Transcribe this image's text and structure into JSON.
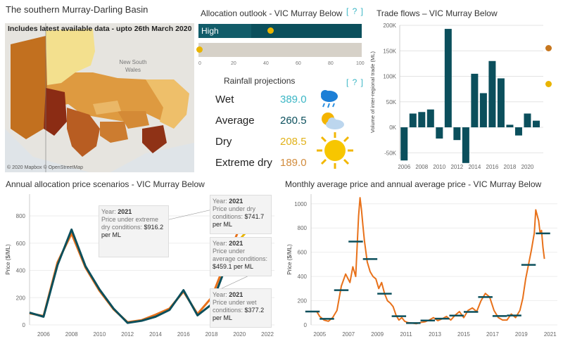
{
  "colors": {
    "teal": "#0b4f5c",
    "orange": "#e8711a",
    "gold": "#e9b400",
    "cyan": "#1fb8c4",
    "darkorange": "#c7771f",
    "gray": "#d6d1c8",
    "wet": "#3bb6c5",
    "average": "#0b4f5c",
    "dry": "#e1b21a",
    "extreme": "#d18b3c"
  },
  "map": {
    "title": "The southern Murray-Darling Basin",
    "subtitle": "Includes latest available data - upto 26th March 2020",
    "nsw_label": "New South Wales",
    "attribution": "© 2020 Mapbox © OpenStreetMap"
  },
  "allocation": {
    "title": "Allocation outlook - VIC Murray Below",
    "help": "[ ? ]",
    "high_label": "High",
    "bar1_icon": "sun-dot-icon",
    "bar2_icon": "sun-dot-icon",
    "axis_ticks": [
      "0",
      "20",
      "40",
      "60",
      "80",
      "100"
    ]
  },
  "rainfall": {
    "title": "Rainfall projections",
    "help": "[ ? ]",
    "rows": [
      {
        "label": "Wet",
        "value": "389.0",
        "icon": "rain-cloud-icon"
      },
      {
        "label": "Average",
        "value": "260.5",
        "icon": "partly-cloudy-icon"
      },
      {
        "label": "Dry",
        "value": "208.5",
        "icon": "sun-icon"
      },
      {
        "label": "Extreme dry",
        "value": "189.0",
        "icon": "big-sun-icon"
      }
    ]
  },
  "trade": {
    "title": "Trade flows – VIC Murray Below"
  },
  "scenarios": {
    "title": "Annual allocation price scenarios - VIC Murray Below",
    "tooltips": [
      {
        "year_label": "Year:",
        "year": "2021",
        "text": "Price under extreme dry conditions:",
        "value": "$916.2 per ML"
      },
      {
        "year_label": "Year:",
        "year": "2021",
        "text": "Price under dry conditions:",
        "value": "$741.7 per ML"
      },
      {
        "year_label": "Year:",
        "year": "2021",
        "text": "Price under average conditions:",
        "value": "$459.1 per ML"
      },
      {
        "year_label": "Year:",
        "year": "2021",
        "text": "Price under wet conditions:",
        "value": "$377.2 per ML"
      }
    ]
  },
  "monthly": {
    "title": "Monthly average price and annual average price - VIC Murray Below"
  },
  "chart_data": [
    {
      "type": "bar",
      "id": "trade",
      "title": "Trade flows – VIC Murray Below",
      "ylabel": "Volume of inter-regional trade (ML)",
      "ylim": [
        -62000,
        200000
      ],
      "yticks": [
        -50000,
        0,
        50000,
        100000,
        150000,
        200000
      ],
      "ytick_labels": [
        "-50K",
        "0K",
        "50K",
        "100K",
        "150K",
        "200K"
      ],
      "xticks": [
        2006,
        2008,
        2010,
        2012,
        2014,
        2016,
        2018,
        2020
      ],
      "x": [
        2006,
        2007,
        2008,
        2009,
        2010,
        2011,
        2012,
        2013,
        2014,
        2015,
        2016,
        2017,
        2018,
        2019,
        2020,
        2021
      ],
      "values": [
        -65000,
        27000,
        30000,
        35000,
        -22000,
        193000,
        -25000,
        -70000,
        105000,
        67000,
        130000,
        96000,
        5000,
        -16000,
        27000,
        13000
      ],
      "grid": true
    },
    {
      "type": "line",
      "id": "scenarios",
      "title": "Annual allocation price scenarios - VIC Murray Below",
      "ylabel": "Price ($/ML)",
      "xlim": [
        2005,
        2022.5
      ],
      "ylim": [
        0,
        960
      ],
      "yticks": [
        0,
        200,
        400,
        600,
        800
      ],
      "xticks": [
        2006,
        2008,
        2010,
        2012,
        2014,
        2016,
        2018,
        2020,
        2022
      ],
      "series": [
        {
          "key": "historic",
          "color": "#0b4f5c",
          "x": [
            2005,
            2006,
            2007,
            2008,
            2009,
            2010,
            2011,
            2012,
            2013,
            2014,
            2015,
            2016,
            2017,
            2018,
            2019,
            2020,
            2021
          ],
          "values": [
            90,
            60,
            440,
            700,
            430,
            260,
            120,
            15,
            30,
            60,
            110,
            255,
            70,
            150,
            420,
            625,
            460
          ]
        },
        {
          "key": "modelled",
          "color": "#e8711a",
          "x": [
            2005,
            2006,
            2007,
            2008,
            2009,
            2010,
            2011,
            2012,
            2013,
            2014,
            2015,
            2016,
            2017,
            2018,
            2019,
            2020,
            2021
          ],
          "values": [
            85,
            65,
            460,
            670,
            420,
            250,
            115,
            20,
            35,
            75,
            120,
            245,
            80,
            200,
            460,
            710,
            916.2
          ]
        },
        {
          "key": "dry",
          "color": "#e9b400",
          "x": [
            2020,
            2021
          ],
          "values": [
            625,
            741.7
          ]
        },
        {
          "key": "average",
          "color": "#0b4f5c",
          "x": [
            2020,
            2021
          ],
          "values": [
            625,
            459.1
          ]
        },
        {
          "key": "wet",
          "color": "#1fb8c4",
          "x": [
            2020,
            2021
          ],
          "values": [
            625,
            377.2
          ]
        }
      ]
    },
    {
      "type": "line",
      "id": "monthly",
      "title": "Monthly average price and annual average price - VIC Murray Below",
      "ylabel": "Price ($/ML)",
      "xlim": [
        2004.4,
        2021.5
      ],
      "ylim": [
        0,
        1080
      ],
      "yticks": [
        0,
        200,
        400,
        600,
        800,
        1000
      ],
      "xticks": [
        2005,
        2007,
        2009,
        2011,
        2013,
        2015,
        2017,
        2019,
        2021
      ],
      "x": [
        2004.8,
        2005.0,
        2005.3,
        2005.6,
        2005.9,
        2006.2,
        2006.5,
        2006.8,
        2007.1,
        2007.3,
        2007.5,
        2007.7,
        2007.8,
        2007.9,
        2008.0,
        2008.1,
        2008.3,
        2008.5,
        2008.7,
        2008.9,
        2009.1,
        2009.3,
        2009.5,
        2009.7,
        2009.9,
        2010.1,
        2010.3,
        2010.5,
        2010.7,
        2010.9,
        2011.1,
        2011.4,
        2011.7,
        2012.0,
        2012.3,
        2012.6,
        2012.9,
        2013.2,
        2013.5,
        2013.8,
        2014.1,
        2014.4,
        2014.7,
        2015.0,
        2015.3,
        2015.6,
        2015.9,
        2016.2,
        2016.5,
        2016.8,
        2017.1,
        2017.4,
        2017.7,
        2018.0,
        2018.3,
        2018.6,
        2018.9,
        2019.1,
        2019.3,
        2019.5,
        2019.7,
        2019.9,
        2020.0,
        2020.2,
        2020.3,
        2020.4,
        2020.5,
        2020.6
      ],
      "values": [
        110,
        70,
        40,
        30,
        60,
        120,
        320,
        420,
        350,
        480,
        400,
        900,
        1050,
        950,
        820,
        700,
        520,
        440,
        400,
        380,
        300,
        350,
        260,
        200,
        180,
        150,
        80,
        40,
        60,
        30,
        20,
        15,
        10,
        20,
        25,
        40,
        60,
        35,
        50,
        70,
        40,
        80,
        110,
        60,
        120,
        140,
        110,
        200,
        260,
        230,
        120,
        60,
        40,
        40,
        90,
        60,
        120,
        220,
        380,
        500,
        620,
        760,
        950,
        860,
        760,
        780,
        640,
        545
      ]
    }
  ]
}
